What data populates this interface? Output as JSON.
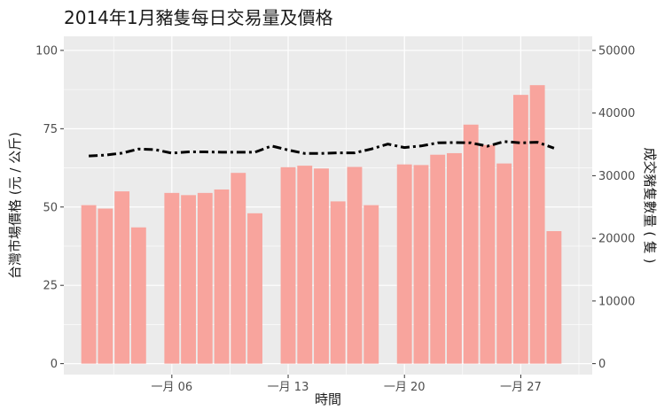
{
  "chart_data": {
    "type": "bar+line",
    "title": "2014年1月豬隻每日交易量及價格",
    "xlabel": "時間",
    "ylabel_left": "台灣市場價格 (元 / 公斤)",
    "ylabel_right": "成交豬隻數量 ( 隻 )",
    "x_ticks": [
      {
        "day": 6,
        "label": "一月 06"
      },
      {
        "day": 13,
        "label": "一月 13"
      },
      {
        "day": 20,
        "label": "一月 20"
      },
      {
        "day": 27,
        "label": "一月 27"
      }
    ],
    "y_left_ticks": [
      0,
      25,
      50,
      75,
      100
    ],
    "y_right_ticks": [
      0,
      10000,
      20000,
      30000,
      40000,
      50000
    ],
    "ylim_left": [
      -3.5,
      104.5
    ],
    "ylim_right": [
      -1750,
      52250
    ],
    "xlim_days": [
      -0.5,
      31.3
    ],
    "grid": true,
    "background": "#ebebeb",
    "bar_color": "#f8a49d",
    "line_color": "#000000",
    "series": [
      {
        "kind": "bar",
        "axis": "left",
        "days": [
          1,
          2,
          3,
          4,
          5,
          6,
          7,
          8,
          9,
          10,
          11,
          12,
          13,
          14,
          15,
          16,
          17,
          18,
          19,
          20,
          21,
          22,
          23,
          24,
          25,
          26,
          27,
          28,
          29
        ],
        "values": [
          50.6,
          49.5,
          55,
          43.5,
          null,
          54.5,
          53.8,
          54.5,
          55.6,
          60.9,
          48,
          null,
          62.7,
          63.2,
          62.3,
          51.8,
          62.8,
          50.6,
          null,
          63.6,
          63.4,
          66.7,
          67.2,
          76.3,
          69.8,
          63.9,
          85.8,
          88.9,
          42.3
        ]
      },
      {
        "kind": "line",
        "axis": "left",
        "days": [
          1,
          2,
          3,
          4,
          5,
          6,
          7,
          8,
          9,
          10,
          11,
          12,
          13,
          14,
          15,
          16,
          17,
          18,
          19,
          20,
          21,
          22,
          23,
          24,
          25,
          26,
          27,
          28,
          29
        ],
        "values": [
          66.3,
          66.6,
          67.2,
          68.5,
          68.3,
          67.2,
          67.6,
          67.6,
          67.5,
          67.5,
          67.5,
          69.5,
          68.2,
          67.1,
          67.1,
          67.3,
          67.3,
          68.5,
          70.1,
          69,
          69.5,
          70.5,
          70.6,
          70.5,
          69.4,
          70.9,
          70.5,
          70.7,
          68.8
        ]
      }
    ]
  }
}
